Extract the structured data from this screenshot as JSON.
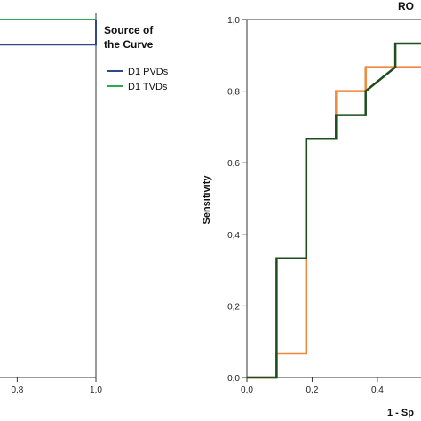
{
  "chart_data": [
    {
      "type": "line",
      "title": "",
      "xlabel": "",
      "ylabel": "",
      "xlim": [
        0,
        1
      ],
      "ylim": [
        0,
        1
      ],
      "xticks": [
        "0,8",
        "1,0"
      ],
      "legend": {
        "title_line1": "Source of",
        "title_line2": "the Curve",
        "placement": "right",
        "entries": [
          "D1 PVDs",
          "D1 TVDs"
        ]
      },
      "series": [
        {
          "name": "D1 PVDs",
          "color": "#2e4a8b",
          "x": [
            0.72,
            1.0,
            1.0
          ],
          "y": [
            0.93,
            0.93,
            1.0
          ]
        },
        {
          "name": "D1 TVDs",
          "color": "#2bab4a",
          "x": [
            0.72,
            1.0
          ],
          "y": [
            1.0,
            1.0
          ]
        }
      ]
    },
    {
      "type": "line",
      "title": "RO",
      "xlabel": "1 - Sp",
      "ylabel": "Sensitivity",
      "xlim": [
        0,
        0.55
      ],
      "ylim": [
        0,
        1
      ],
      "xticks": [
        "0,0",
        "0,2",
        "0,4"
      ],
      "yticks": [
        "0,0",
        "0,2",
        "0,4",
        "0,6",
        "0,8",
        "1,0"
      ],
      "grid": false,
      "series": [
        {
          "color": "#1e4d1e",
          "x": [
            0,
            0.091,
            0.091,
            0.182,
            0.182,
            0.273,
            0.273,
            0.364,
            0.364,
            0.455,
            0.455,
            0.55
          ],
          "y": [
            0,
            0,
            0.333,
            0.333,
            0.667,
            0.667,
            0.733,
            0.733,
            0.8,
            0.867,
            0.933,
            0.933
          ]
        },
        {
          "color": "#f0883a",
          "x": [
            0,
            0.091,
            0.091,
            0.182,
            0.182,
            0.273,
            0.273,
            0.364,
            0.364,
            0.455,
            0.455,
            0.55
          ],
          "y": [
            0,
            0,
            0.067,
            0.067,
            0.667,
            0.667,
            0.8,
            0.8,
            0.867,
            0.867,
            0.867,
            0.867
          ]
        }
      ]
    }
  ]
}
